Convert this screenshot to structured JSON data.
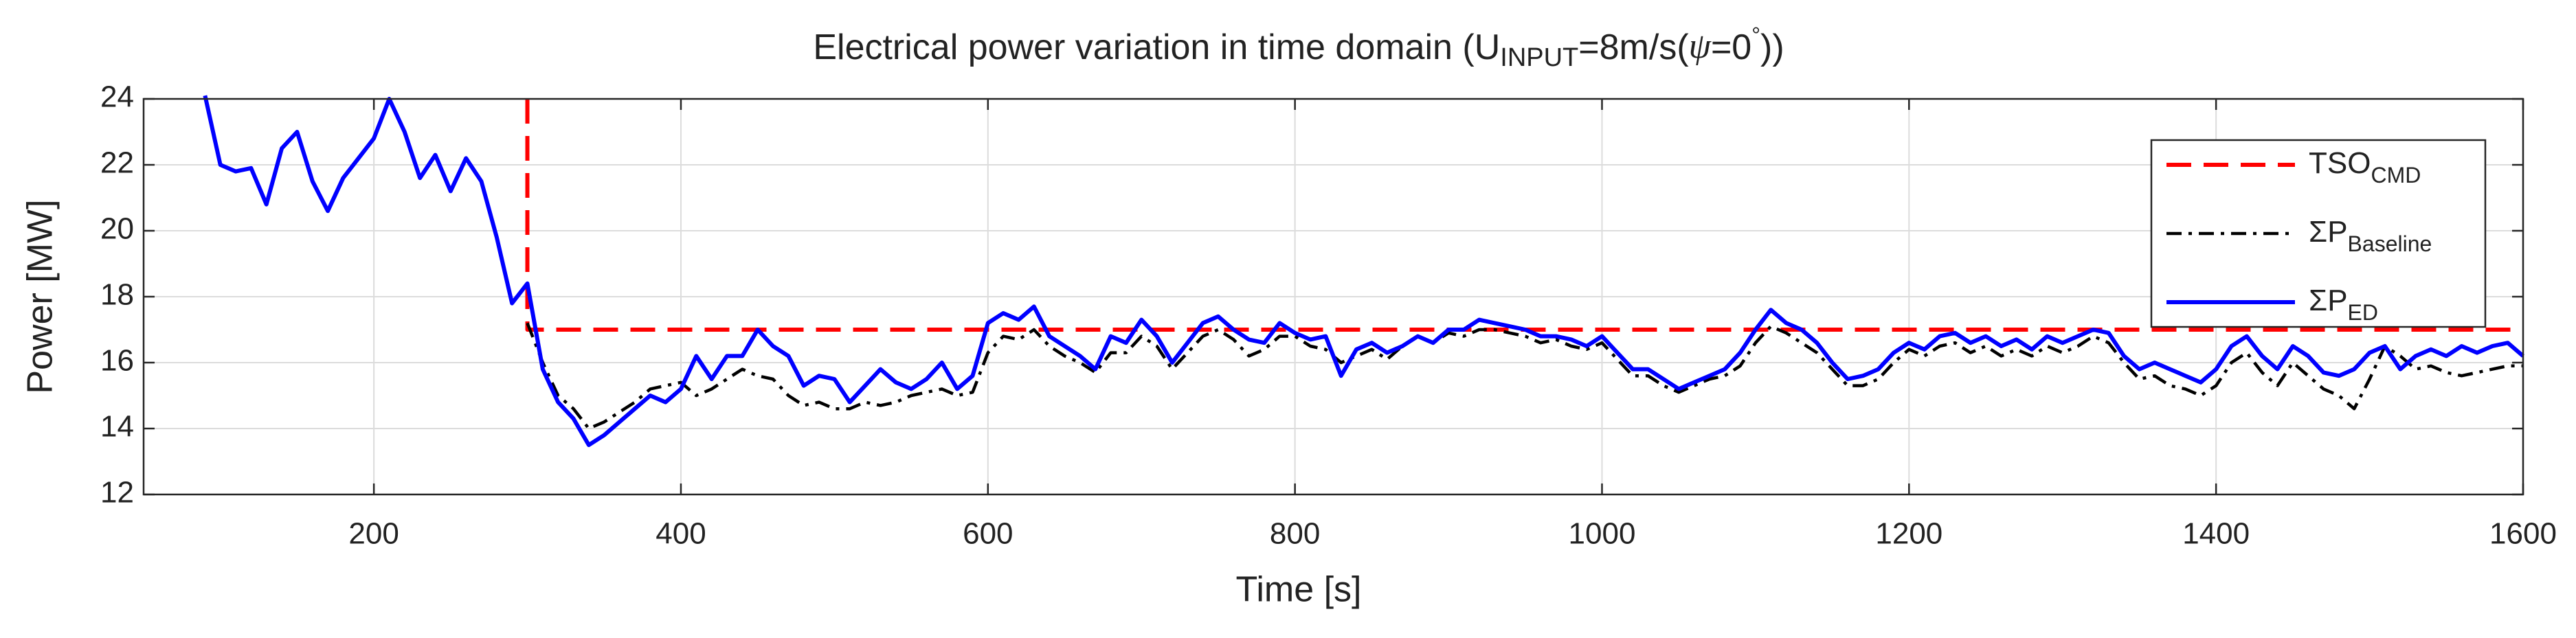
{
  "chart_data": {
    "type": "line",
    "title": [
      "Electrical power variation in time domain (U",
      "INPUT",
      "=8m/s(",
      "ψ",
      "=0",
      "°",
      "))"
    ],
    "xlabel": "Time [s]",
    "ylabel": "Power [MW]",
    "xlim": [
      50,
      1600
    ],
    "ylim": [
      12,
      24
    ],
    "xticks": [
      200,
      400,
      600,
      800,
      1000,
      1200,
      1400,
      1600
    ],
    "yticks": [
      12,
      14,
      16,
      18,
      20,
      22,
      24
    ],
    "grid": true,
    "legend": "upper right",
    "series": [
      {
        "name": "TSO",
        "subscript": "CMD",
        "color": "#ff0000",
        "dash": "dashed",
        "x": [
          300,
          300,
          1600
        ],
        "values": [
          24,
          17,
          17
        ]
      },
      {
        "name": "ΣP",
        "subscript": "Baseline",
        "color": "#000000",
        "dash": "dashdot",
        "x": [
          300,
          310,
          320,
          330,
          340,
          350,
          360,
          370,
          380,
          390,
          400,
          410,
          420,
          430,
          440,
          450,
          460,
          470,
          480,
          490,
          500,
          510,
          520,
          530,
          540,
          550,
          560,
          570,
          580,
          590,
          600,
          610,
          620,
          630,
          640,
          650,
          660,
          670,
          680,
          690,
          700,
          710,
          720,
          730,
          740,
          750,
          760,
          770,
          780,
          790,
          800,
          810,
          820,
          830,
          840,
          850,
          860,
          870,
          880,
          890,
          900,
          910,
          920,
          930,
          940,
          950,
          960,
          970,
          980,
          990,
          1000,
          1010,
          1020,
          1030,
          1040,
          1050,
          1060,
          1070,
          1080,
          1090,
          1100,
          1110,
          1120,
          1130,
          1140,
          1150,
          1160,
          1170,
          1180,
          1190,
          1200,
          1210,
          1220,
          1230,
          1240,
          1250,
          1260,
          1270,
          1280,
          1290,
          1300,
          1310,
          1320,
          1330,
          1340,
          1350,
          1360,
          1370,
          1380,
          1390,
          1400,
          1410,
          1420,
          1430,
          1440,
          1450,
          1460,
          1470,
          1480,
          1490,
          1500,
          1510,
          1520,
          1530,
          1540,
          1550,
          1560,
          1570,
          1580,
          1590,
          1600
        ],
        "values": [
          17.2,
          16,
          15,
          14.6,
          14,
          14.2,
          14.5,
          14.8,
          15.2,
          15.3,
          15.4,
          15,
          15.2,
          15.5,
          15.8,
          15.6,
          15.5,
          15,
          14.7,
          14.8,
          14.6,
          14.6,
          14.8,
          14.7,
          14.8,
          15,
          15.1,
          15.2,
          15,
          15.1,
          16.3,
          16.8,
          16.7,
          17,
          16.5,
          16.2,
          16,
          15.7,
          16.3,
          16.3,
          16.8,
          16.5,
          15.8,
          16.3,
          16.8,
          17,
          16.7,
          16.2,
          16.4,
          16.8,
          16.8,
          16.5,
          16.4,
          16,
          16.2,
          16.4,
          16.1,
          16.5,
          16.8,
          16.6,
          16.9,
          16.8,
          17,
          17,
          16.9,
          16.8,
          16.6,
          16.7,
          16.5,
          16.4,
          16.6,
          16.1,
          15.6,
          15.6,
          15.3,
          15.1,
          15.3,
          15.5,
          15.6,
          15.9,
          16.6,
          17.1,
          16.9,
          16.6,
          16.3,
          15.8,
          15.3,
          15.3,
          15.5,
          16,
          16.4,
          16.2,
          16.5,
          16.6,
          16.3,
          16.5,
          16.2,
          16.4,
          16.2,
          16.5,
          16.3,
          16.5,
          16.8,
          16.6,
          16,
          15.5,
          15.6,
          15.3,
          15.2,
          15,
          15.3,
          16,
          16.3,
          15.7,
          15.3,
          16,
          15.6,
          15.2,
          15,
          14.6,
          15.5,
          16.5,
          16.2,
          15.8,
          15.9,
          15.7,
          15.6,
          15.7,
          15.8,
          15.9,
          15.9
        ]
      },
      {
        "name": "ΣP",
        "subscript": "ED",
        "color": "#0000ff",
        "dash": "solid",
        "x": [
          90,
          100,
          110,
          120,
          130,
          140,
          150,
          160,
          170,
          180,
          190,
          200,
          210,
          220,
          230,
          240,
          250,
          260,
          270,
          280,
          290,
          300,
          310,
          320,
          330,
          340,
          350,
          360,
          370,
          380,
          390,
          400,
          410,
          420,
          430,
          440,
          450,
          460,
          470,
          480,
          490,
          500,
          510,
          520,
          530,
          540,
          550,
          560,
          570,
          580,
          590,
          600,
          610,
          620,
          630,
          640,
          650,
          660,
          670,
          680,
          690,
          700,
          710,
          720,
          730,
          740,
          750,
          760,
          770,
          780,
          790,
          800,
          810,
          820,
          830,
          840,
          850,
          860,
          870,
          880,
          890,
          900,
          910,
          920,
          930,
          940,
          950,
          960,
          970,
          980,
          990,
          1000,
          1010,
          1020,
          1030,
          1040,
          1050,
          1060,
          1070,
          1080,
          1090,
          1100,
          1110,
          1120,
          1130,
          1140,
          1150,
          1160,
          1170,
          1180,
          1190,
          1200,
          1210,
          1220,
          1230,
          1240,
          1250,
          1260,
          1270,
          1280,
          1290,
          1300,
          1310,
          1320,
          1330,
          1340,
          1350,
          1360,
          1370,
          1380,
          1390,
          1400,
          1410,
          1420,
          1430,
          1440,
          1450,
          1460,
          1470,
          1480,
          1490,
          1500,
          1510,
          1520,
          1530,
          1540,
          1550,
          1560,
          1570,
          1580,
          1590,
          1600
        ],
        "values": [
          24.1,
          22,
          21.8,
          21.9,
          20.8,
          22.5,
          23,
          21.5,
          20.6,
          21.6,
          22.2,
          22.8,
          24,
          23,
          21.6,
          22.3,
          21.2,
          22.2,
          21.5,
          19.8,
          17.8,
          18.4,
          15.8,
          14.8,
          14.3,
          13.5,
          13.8,
          14.2,
          14.6,
          15,
          14.8,
          15.2,
          16.2,
          15.5,
          16.2,
          16.2,
          17,
          16.5,
          16.2,
          15.3,
          15.6,
          15.5,
          14.8,
          15.3,
          15.8,
          15.4,
          15.2,
          15.5,
          16,
          15.2,
          15.6,
          17.2,
          17.5,
          17.3,
          17.7,
          16.8,
          16.5,
          16.2,
          15.8,
          16.8,
          16.6,
          17.3,
          16.8,
          16,
          16.6,
          17.2,
          17.4,
          17,
          16.7,
          16.6,
          17.2,
          16.9,
          16.7,
          16.8,
          15.6,
          16.4,
          16.6,
          16.3,
          16.5,
          16.8,
          16.6,
          17,
          17,
          17.3,
          17.2,
          17.1,
          17,
          16.8,
          16.8,
          16.7,
          16.5,
          16.8,
          16.3,
          15.8,
          15.8,
          15.5,
          15.2,
          15.4,
          15.6,
          15.8,
          16.3,
          17,
          17.6,
          17.2,
          17,
          16.6,
          16,
          15.5,
          15.6,
          15.8,
          16.3,
          16.6,
          16.4,
          16.8,
          16.9,
          16.6,
          16.8,
          16.5,
          16.7,
          16.4,
          16.8,
          16.6,
          16.8,
          17,
          16.9,
          16.2,
          15.8,
          16,
          15.8,
          15.6,
          15.4,
          15.8,
          16.5,
          16.8,
          16.2,
          15.8,
          16.5,
          16.2,
          15.7,
          15.6,
          15.8,
          16.3,
          16.5,
          15.8,
          16.2,
          16.4,
          16.2,
          16.5,
          16.3,
          16.5,
          16.6,
          16.2
        ]
      }
    ]
  }
}
